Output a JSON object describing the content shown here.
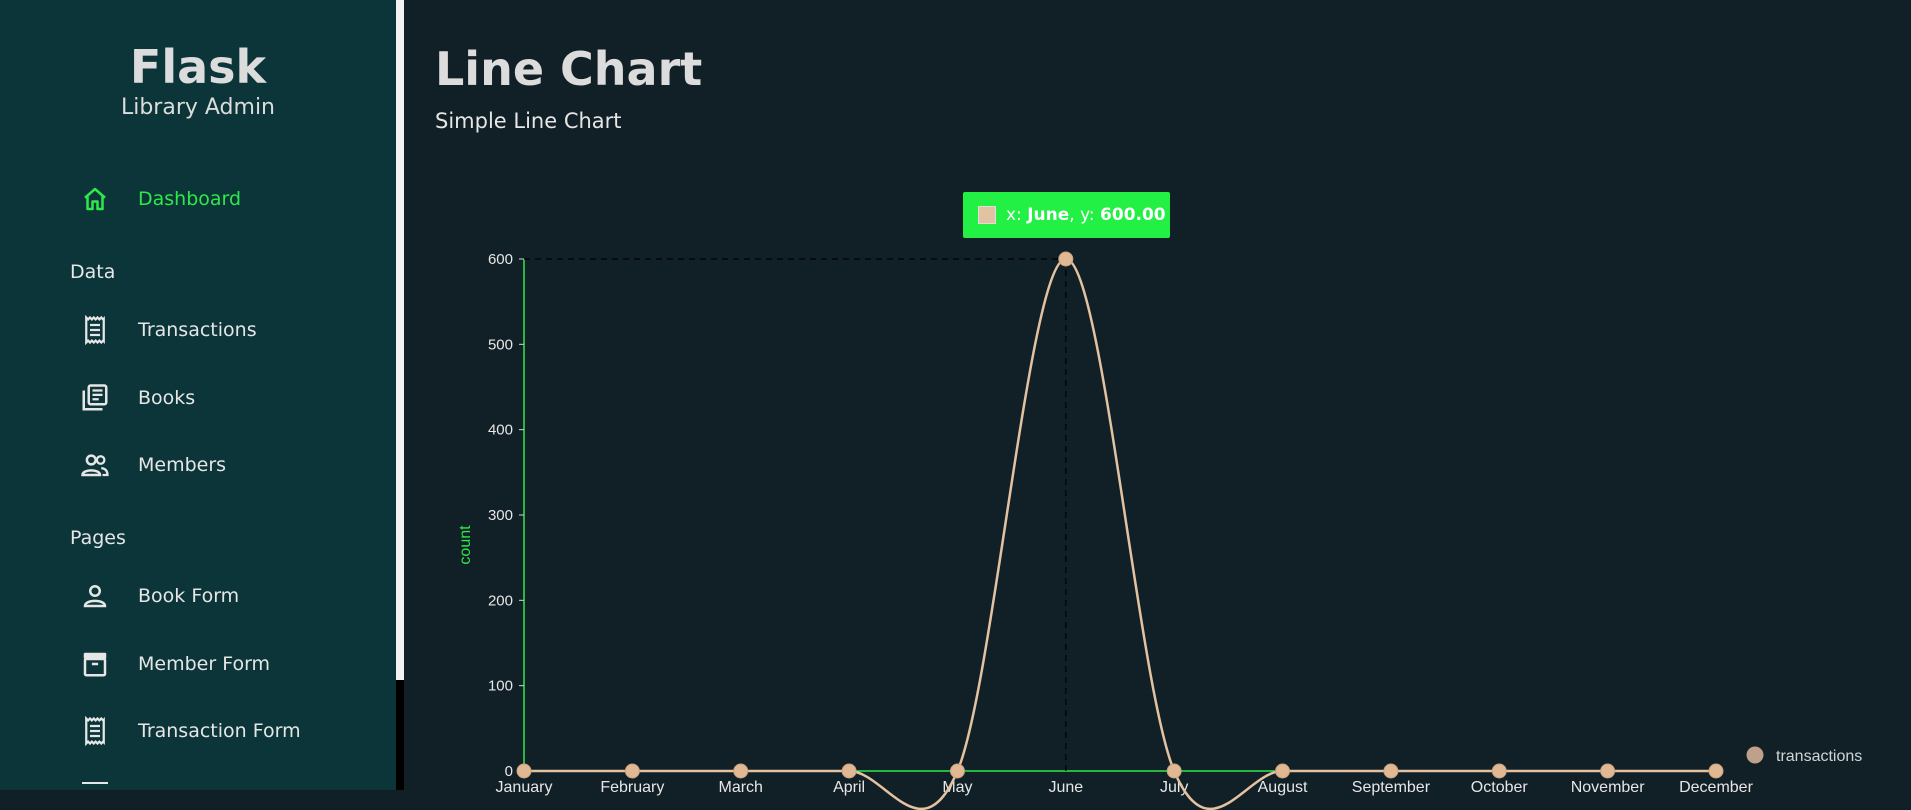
{
  "sidebar": {
    "brand_title": "Flask",
    "brand_subtitle": "Library Admin",
    "active_item": {
      "label": "Dashboard",
      "icon": "home-icon"
    },
    "sections": [
      {
        "label": "Data",
        "items": [
          {
            "label": "Transactions",
            "icon": "receipt-icon"
          },
          {
            "label": "Books",
            "icon": "library-books-icon"
          },
          {
            "label": "Members",
            "icon": "people-icon"
          }
        ]
      },
      {
        "label": "Pages",
        "items": [
          {
            "label": "Book Form",
            "icon": "person-icon"
          },
          {
            "label": "Member Form",
            "icon": "archive-icon"
          },
          {
            "label": "Transaction Form",
            "icon": "receipt-icon"
          }
        ]
      }
    ]
  },
  "main": {
    "title": "Line Chart",
    "subtitle": "Simple Line Chart"
  },
  "tooltip": {
    "x_prefix": "x: ",
    "x_value": "June",
    "y_prefix": ", y: ",
    "y_value": "600.00"
  },
  "colors": {
    "accent": "#2ee84a",
    "line": "#e3c2a1",
    "point": "#e0b893",
    "sidebar_bg": "#0b3538",
    "main_bg": "#111f26"
  },
  "chart_data": {
    "type": "line",
    "categories": [
      "January",
      "February",
      "March",
      "April",
      "May",
      "June",
      "July",
      "August",
      "September",
      "October",
      "November",
      "December"
    ],
    "series": [
      {
        "name": "transactions",
        "values": [
          0,
          0,
          0,
          0,
          0,
          600,
          0,
          0,
          0,
          0,
          0,
          0
        ]
      }
    ],
    "title": "",
    "xlabel": "",
    "ylabel": "count",
    "ylim": [
      0,
      600
    ],
    "yticks": [
      0,
      100,
      200,
      300,
      400,
      500,
      600
    ],
    "grid": false,
    "legend": "bottom-right",
    "hover": {
      "category": "June",
      "value": 600
    }
  }
}
